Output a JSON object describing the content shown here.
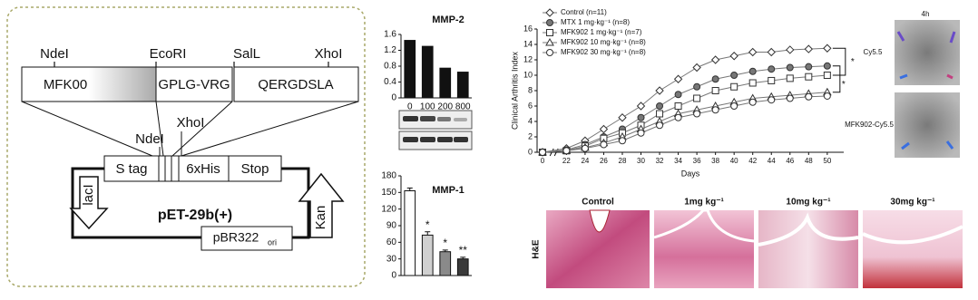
{
  "diagram": {
    "sites_top": [
      "NdeI",
      "EcoRI",
      "SalL",
      "XhoI"
    ],
    "segments": [
      "MFK00",
      "GPLG-VRG",
      "QERGDSLA"
    ],
    "sites_vector": [
      "NdeI",
      "XhoI"
    ],
    "features": [
      "S tag",
      "6xHis",
      "Stop"
    ],
    "lacI": "lacI",
    "kan": "Kan",
    "plasmid": "pET-29b(+)",
    "ori_box": "pBR322",
    "ori_sub": "ori"
  },
  "chart_data": [
    {
      "type": "bar",
      "title": "MMP-2",
      "categories": [
        "0",
        "100",
        "200",
        "800"
      ],
      "values": [
        1.45,
        1.3,
        0.75,
        0.65
      ],
      "color": "#111111",
      "ylim": [
        0,
        1.6
      ],
      "yticks": [
        0,
        0.4,
        0.8,
        1.2,
        1.6
      ]
    },
    {
      "type": "bar",
      "title": "MMP-1",
      "categories": [
        null,
        null,
        null,
        null
      ],
      "values": [
        153,
        73,
        43,
        30
      ],
      "errors": [
        5,
        6,
        3,
        3
      ],
      "colors": [
        "#ffffff",
        "#d0d0d0",
        "#8a8a8a",
        "#3a3a3a"
      ],
      "significance": [
        null,
        "*",
        "*",
        "**"
      ],
      "ylim": [
        0,
        180
      ],
      "yticks": [
        0,
        30,
        60,
        90,
        120,
        150,
        180
      ]
    },
    {
      "type": "line",
      "x_label": "Days",
      "y_label": "Clinical Arthritis Index",
      "categories": [
        "0",
        "22",
        "24",
        "26",
        "28",
        "30",
        "32",
        "34",
        "36",
        "38",
        "40",
        "42",
        "44",
        "46",
        "48",
        "50"
      ],
      "ylim": [
        0,
        16
      ],
      "yticks": [
        0,
        2,
        4,
        6,
        8,
        10,
        12,
        14,
        16
      ],
      "annotations": [
        "*",
        "*"
      ],
      "series": [
        {
          "name": "Control (n=11)",
          "marker": "diamond",
          "color": "#777777",
          "values": [
            0,
            0.5,
            1.5,
            3,
            4.5,
            6,
            8,
            9.5,
            11,
            12,
            12.5,
            13,
            13,
            13.3,
            13.4,
            13.5
          ]
        },
        {
          "name": "MTX 1 mg·kg⁻¹ (n=8)",
          "marker": "filled-circle",
          "color": "#777777",
          "values": [
            0,
            0.3,
            1,
            2,
            3,
            4.5,
            6,
            7.5,
            8.5,
            9.5,
            10,
            10.5,
            10.8,
            11,
            11.1,
            11.2
          ]
        },
        {
          "name": "MFK902 1 mg·kg⁻¹ (n=7)",
          "marker": "square",
          "color": "#777777",
          "values": [
            0,
            0.2,
            0.8,
            1.8,
            2.5,
            3.5,
            5,
            6,
            7,
            8,
            8.5,
            9,
            9.3,
            9.6,
            9.8,
            10
          ]
        },
        {
          "name": "MFK902 10 mg·kg⁻¹ (n=8)",
          "marker": "triangle",
          "color": "#777777",
          "values": [
            0,
            0.2,
            0.6,
            1.2,
            2,
            3,
            4,
            5,
            5.5,
            6,
            6.5,
            7,
            7.2,
            7.4,
            7.6,
            7.8
          ]
        },
        {
          "name": "MFK902 30 mg·kg⁻¹ (n=8)",
          "marker": "circle",
          "color": "#777777",
          "values": [
            0,
            0.2,
            0.5,
            1,
            1.5,
            2.5,
            3.5,
            4.5,
            5,
            5.5,
            6,
            6.5,
            6.8,
            7,
            7.2,
            7.3
          ]
        }
      ]
    }
  ],
  "imaging": {
    "time": "4h",
    "top": "Cy5.5",
    "bottom": "MFK902-Cy5.5"
  },
  "histology": {
    "stain": "H&E",
    "panels": [
      "Control",
      "1mg kg⁻¹",
      "10mg kg⁻¹",
      "30mg kg⁻¹"
    ]
  }
}
